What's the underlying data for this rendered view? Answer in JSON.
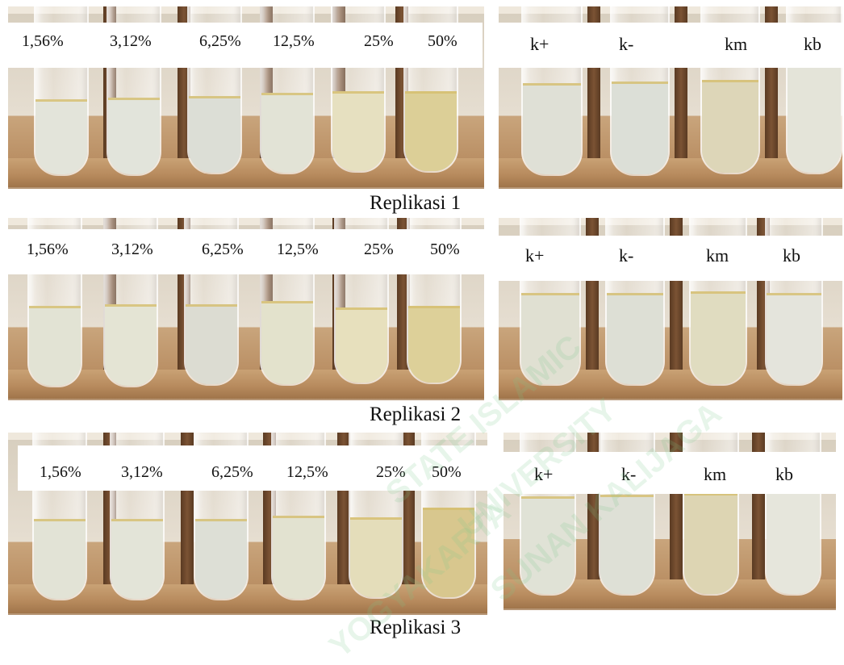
{
  "rows": [
    {
      "caption": "Replikasi 1",
      "concentrations": [
        "1,56%",
        "3,12%",
        "6,25%",
        "12,5%",
        "25%",
        "50%"
      ],
      "controls": [
        "k+",
        "k-",
        "km",
        "kb"
      ]
    },
    {
      "caption": "Replikasi 2",
      "concentrations": [
        "1,56%",
        "3,12%",
        "6,25%",
        "12,5%",
        "25%",
        "50%"
      ],
      "controls": [
        "k+",
        "k-",
        "km",
        "kb"
      ]
    },
    {
      "caption": "Replikasi 3",
      "concentrations": [
        "1,56%",
        "3,12%",
        "6,25%",
        "12,5%",
        "25%",
        "50%"
      ],
      "controls": [
        "k+",
        "k-",
        "km",
        "kb"
      ]
    }
  ],
  "watermark": [
    "STATE",
    "ISLAMIC",
    "UNIVERSITY",
    "SUNAN",
    "KALIJAGA",
    "YOGYAKARTA"
  ],
  "colors": {
    "liquid_clear": "#e3e4da",
    "liquid_pale_yellow": "#e9e2bf",
    "liquid_yellow": "#ddd09a",
    "rack_wood": "#b98e63",
    "rod_brown": "#6b4529"
  }
}
